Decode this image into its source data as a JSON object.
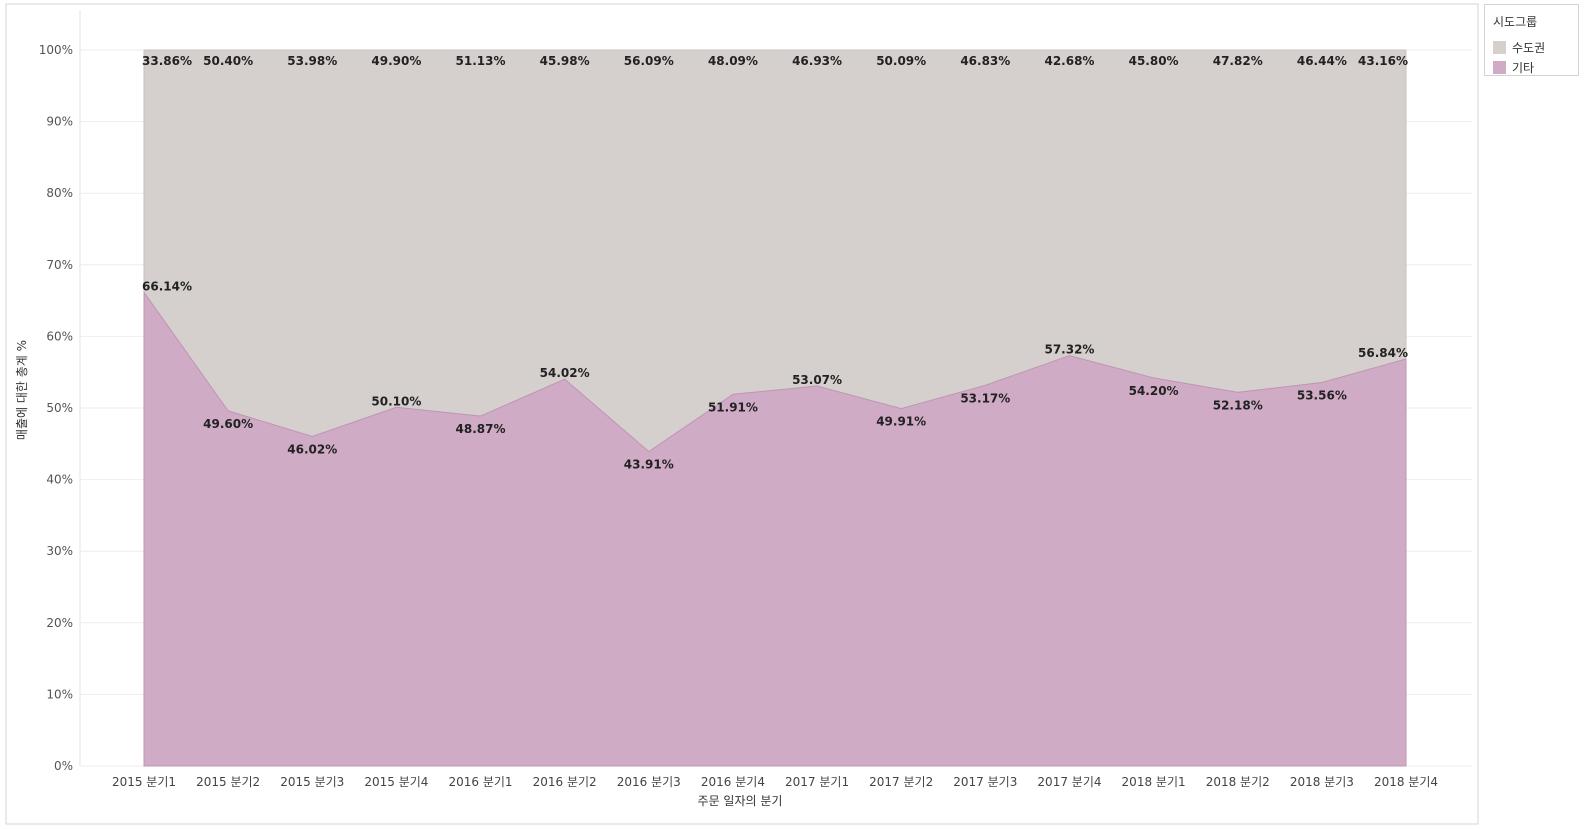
{
  "chart_data": {
    "type": "area",
    "xlabel": "주문 일자의 분기",
    "ylabel": "매출에 대한 총계 %",
    "categories": [
      "2015 분기1",
      "2015 분기2",
      "2015 분기3",
      "2015 분기4",
      "2016 분기1",
      "2016 분기2",
      "2016 분기3",
      "2016 분기4",
      "2017 분기1",
      "2017 분기2",
      "2017 분기3",
      "2017 분기4",
      "2018 분기1",
      "2018 분기2",
      "2018 분기3",
      "2018 분기4"
    ],
    "series": [
      {
        "name": "기타",
        "color": "#d0abc6",
        "values": [
          66.14,
          49.6,
          46.02,
          50.1,
          48.87,
          54.02,
          43.91,
          51.91,
          53.07,
          49.91,
          53.17,
          57.32,
          54.2,
          52.18,
          53.56,
          56.84
        ],
        "labels": [
          "66.14%",
          "49.60%",
          "46.02%",
          "50.10%",
          "48.87%",
          "54.02%",
          "43.91%",
          "51.91%",
          "53.07%",
          "49.91%",
          "53.17%",
          "57.32%",
          "54.20%",
          "52.18%",
          "53.56%",
          "56.84%"
        ]
      },
      {
        "name": "수도권",
        "color": "#d5d0cd",
        "values": [
          33.86,
          50.4,
          53.98,
          49.9,
          51.13,
          45.98,
          56.09,
          48.09,
          46.93,
          50.09,
          46.83,
          42.68,
          45.8,
          47.82,
          46.44,
          43.16
        ],
        "labels": [
          "33.86%",
          "50.40%",
          "53.98%",
          "49.90%",
          "51.13%",
          "45.98%",
          "56.09%",
          "48.09%",
          "46.93%",
          "50.09%",
          "46.83%",
          "42.68%",
          "45.80%",
          "47.82%",
          "46.44%",
          "43.16%"
        ]
      }
    ],
    "ylim": [
      0,
      100
    ],
    "yticks": [
      "0%",
      "10%",
      "20%",
      "30%",
      "40%",
      "50%",
      "60%",
      "70%",
      "80%",
      "90%",
      "100%"
    ],
    "stacked": true,
    "grid": true,
    "legend": {
      "title": "시도그룹",
      "placement": "right",
      "items": [
        "수도권",
        "기타"
      ]
    }
  }
}
